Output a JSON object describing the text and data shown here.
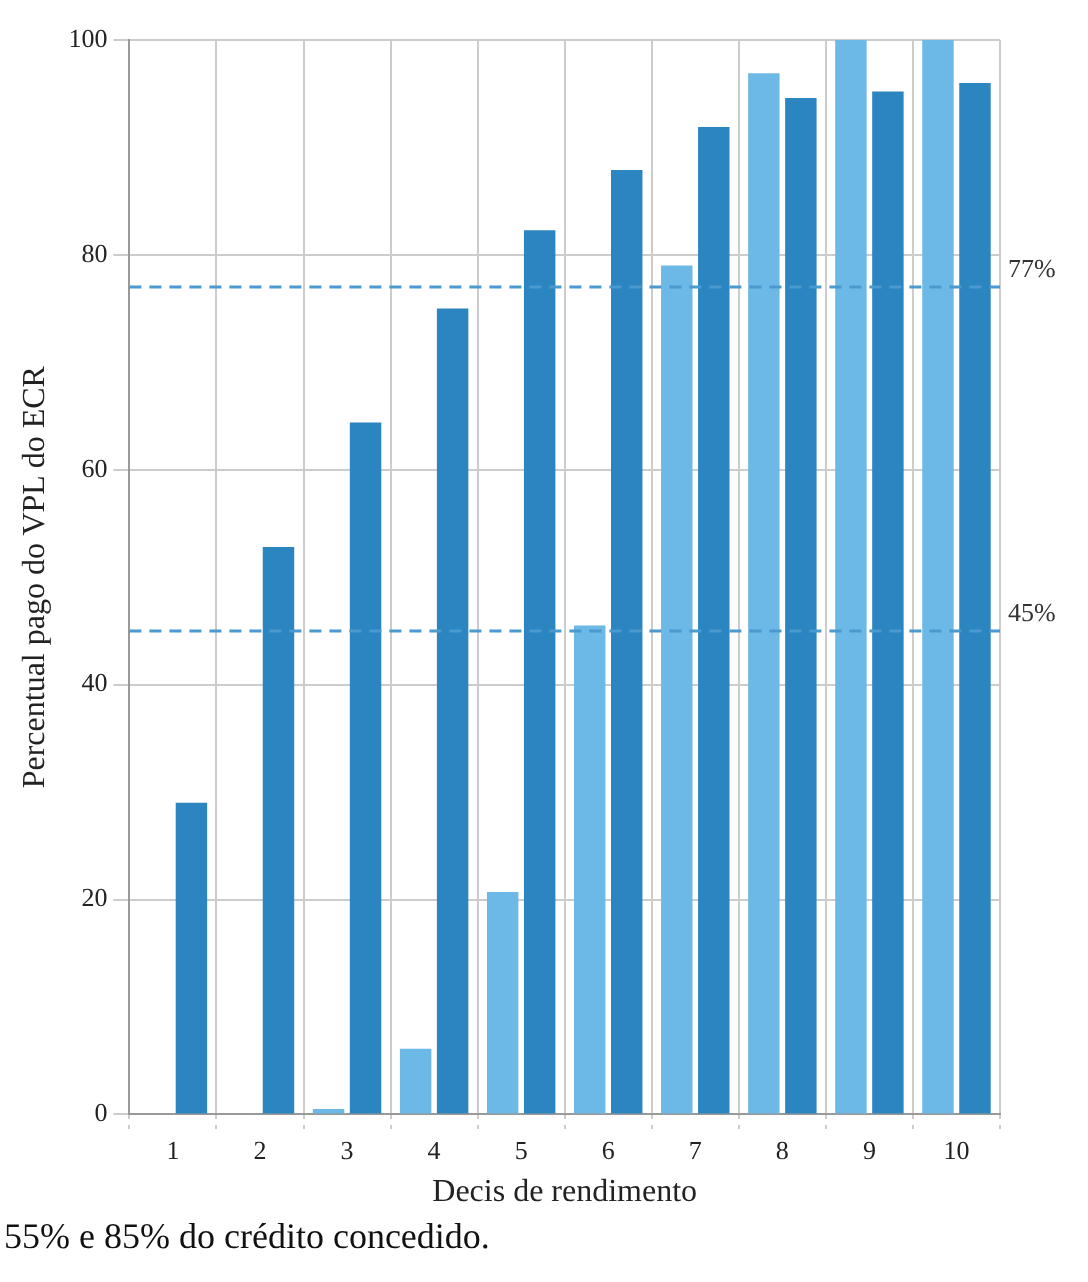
{
  "chart_data": {
    "type": "bar",
    "xlabel": "Decis de rendimento",
    "ylabel": "Percentual pago do VPL do ECR",
    "categories": [
      "1",
      "2",
      "3",
      "4",
      "5",
      "6",
      "7",
      "8",
      "9",
      "10"
    ],
    "series": [
      {
        "color": "#6cb8e6",
        "values": [
          0,
          0,
          0.5,
          6.1,
          20.7,
          45.5,
          79,
          96.9,
          100,
          100
        ]
      },
      {
        "color": "#2a85c0",
        "values": [
          29,
          52.8,
          64.4,
          75,
          82.3,
          87.9,
          91.9,
          94.6,
          95.2,
          96
        ]
      }
    ],
    "ylim": [
      0,
      100
    ],
    "yticks": [
      0,
      20,
      40,
      60,
      80,
      100
    ],
    "grid": true,
    "legend": false,
    "ref_lines": [
      {
        "axis": "y",
        "value": 77,
        "label": "77%",
        "color": "#4a9ad0",
        "line_style": "dashed"
      },
      {
        "axis": "y",
        "value": 45,
        "label": "45%",
        "color": "#4a9ad0",
        "line_style": "dashed"
      }
    ],
    "annotations": [
      "55% e 85% do crédito concedido."
    ]
  }
}
